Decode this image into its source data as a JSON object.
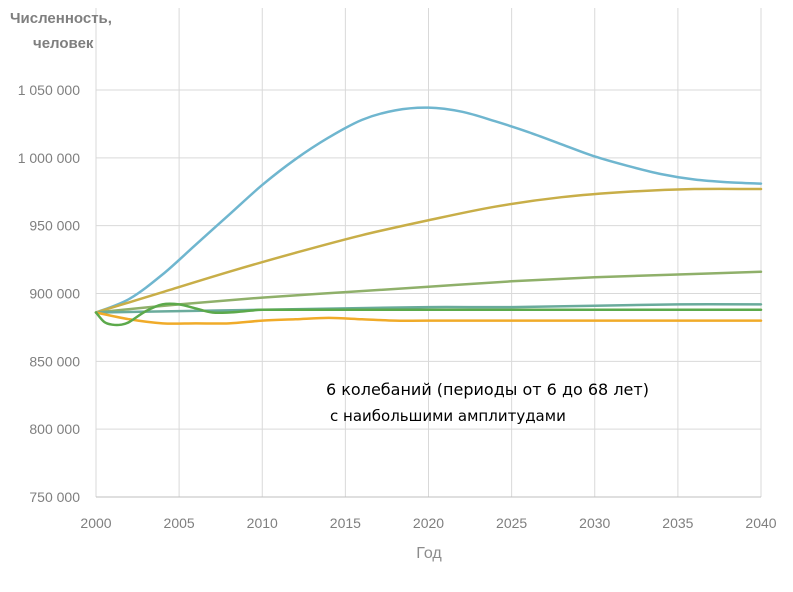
{
  "chart_data": {
    "type": "line",
    "ylabel_line1": "Численность,",
    "ylabel_line2": "человек",
    "xlabel": "Год",
    "xlim": [
      2000,
      2040
    ],
    "ylim": [
      750000,
      1050000
    ],
    "x_ticks": [
      2000,
      2005,
      2010,
      2015,
      2020,
      2025,
      2030,
      2035,
      2040
    ],
    "x_tick_labels": [
      "2000",
      "2005",
      "2010",
      "2015",
      "2020",
      "2025",
      "2030",
      "2035",
      "2040"
    ],
    "y_ticks": [
      750000,
      800000,
      850000,
      900000,
      950000,
      1000000,
      1050000
    ],
    "y_tick_labels": [
      "750 000",
      "800 000",
      "850 000",
      "900 000",
      "950 000",
      "1 000 000",
      "1 050 000"
    ],
    "grid": "vertical and horizontal",
    "annotation_line1": "6 колебаний (периоды от 6 до 68 лет)",
    "annotation_line2": "с наибольшими амплитудами",
    "series": [
      {
        "color": "#6fb6cf",
        "x": [
          2000,
          2002,
          2004,
          2006,
          2008,
          2010,
          2012,
          2014,
          2016,
          2018,
          2020,
          2022,
          2024,
          2026,
          2028,
          2030,
          2032,
          2034,
          2036,
          2038,
          2040
        ],
        "y": [
          886000,
          896000,
          914000,
          936000,
          958000,
          980000,
          999000,
          1015000,
          1028000,
          1035000,
          1037000,
          1034000,
          1027000,
          1019000,
          1010000,
          1001000,
          994000,
          988000,
          984000,
          982000,
          981000
        ]
      },
      {
        "color": "#c8ae48",
        "x": [
          2000,
          2004,
          2008,
          2012,
          2016,
          2020,
          2024,
          2028,
          2032,
          2036,
          2040
        ],
        "y": [
          886000,
          901000,
          916000,
          930000,
          943000,
          954000,
          964000,
          971000,
          975000,
          977000,
          977000
        ]
      },
      {
        "color": "#8fb06a",
        "x": [
          2000,
          2005,
          2010,
          2015,
          2020,
          2025,
          2030,
          2035,
          2040
        ],
        "y": [
          886000,
          892000,
          897000,
          901000,
          905000,
          909000,
          912000,
          914000,
          916000
        ]
      },
      {
        "color": "#6aab9c",
        "x": [
          2000,
          2005,
          2010,
          2015,
          2020,
          2025,
          2030,
          2035,
          2040
        ],
        "y": [
          886000,
          887000,
          888000,
          889000,
          890000,
          890000,
          891000,
          892000,
          892000
        ]
      },
      {
        "color": "#f0ab29",
        "x": [
          2000,
          2002,
          2004,
          2006,
          2008,
          2010,
          2012,
          2014,
          2016,
          2018,
          2020,
          2025,
          2030,
          2035,
          2040
        ],
        "y": [
          886000,
          881000,
          878000,
          878000,
          878000,
          880000,
          881000,
          882000,
          881000,
          880000,
          880000,
          880000,
          880000,
          880000,
          880000
        ]
      },
      {
        "color": "#5ca94b",
        "x": [
          2000,
          2000.5,
          2001,
          2001.5,
          2002,
          2003,
          2004,
          2005,
          2006,
          2007,
          2008,
          2009,
          2010,
          2012,
          2015,
          2020,
          2025,
          2030,
          2035,
          2040
        ],
        "y": [
          886000,
          879000,
          877000,
          877000,
          879000,
          887000,
          892000,
          892000,
          889000,
          886000,
          886000,
          887000,
          888000,
          888000,
          888000,
          888000,
          888000,
          888000,
          888000,
          888000
        ]
      }
    ]
  }
}
